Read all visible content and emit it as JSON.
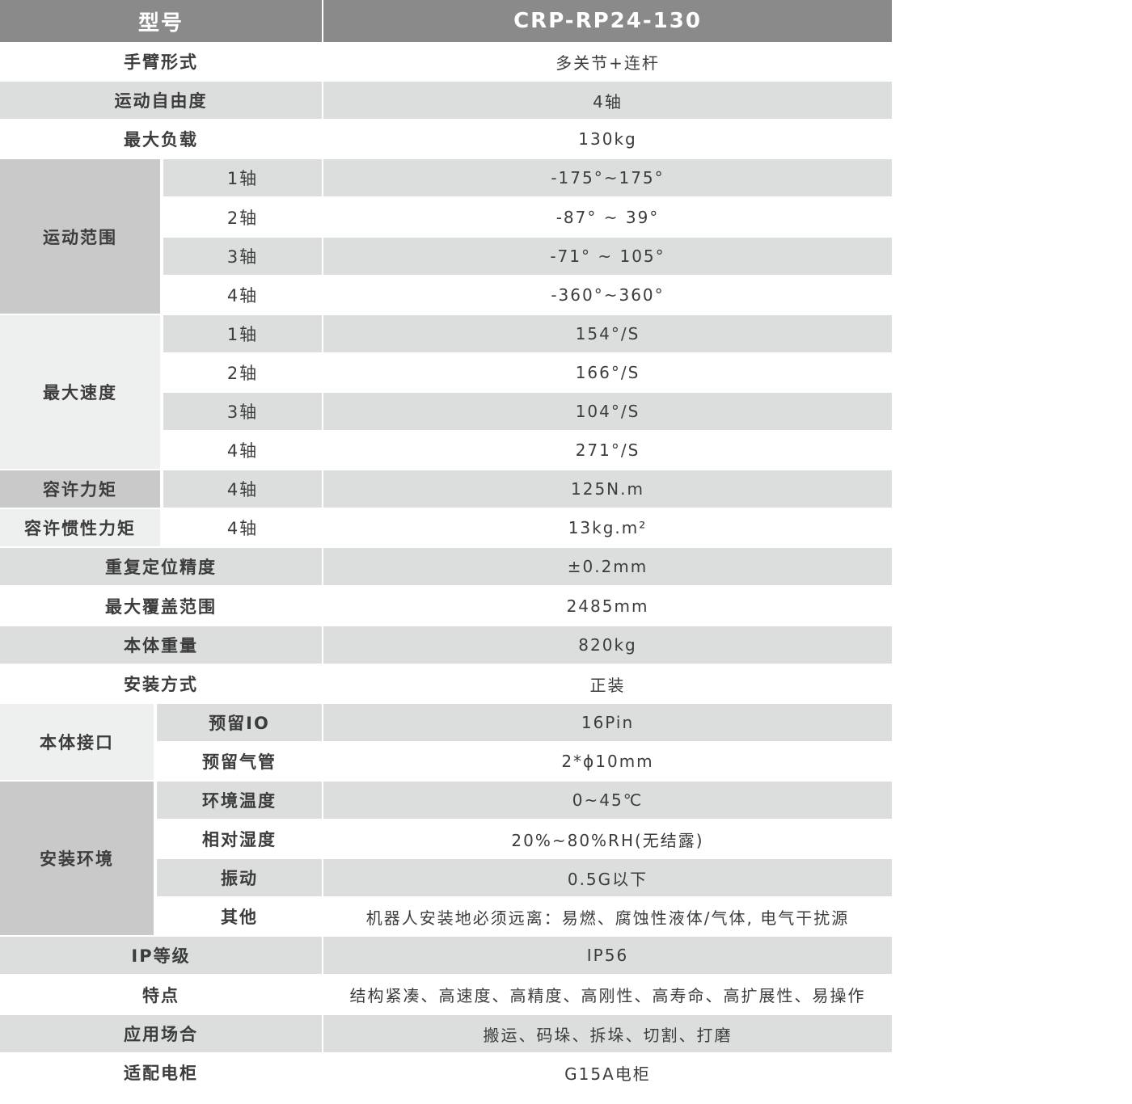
{
  "header": {
    "label": "型号",
    "value": "CRP-RP24-130"
  },
  "colors": {
    "header": "#8a8a8a",
    "stripe": "#dcdddd",
    "group_dark": "#c9c9c9",
    "group_light": "#eeefef",
    "text": "#3c3c3c"
  },
  "rows": [
    {
      "label": "手臂形式",
      "value": "多关节+连杆"
    },
    {
      "label": "运动自由度",
      "value": "4轴"
    },
    {
      "label": "最大负载",
      "value": "130kg"
    },
    {
      "sub": "1轴",
      "value": "-175°~175°"
    },
    {
      "sub": "2轴",
      "value": "-87° ~ 39°"
    },
    {
      "sub": "3轴",
      "value": "-71° ~ 105°"
    },
    {
      "sub": "4轴",
      "value": "-360°~360°"
    },
    {
      "sub": "1轴",
      "value": "154°/S"
    },
    {
      "sub": "2轴",
      "value": "166°/S"
    },
    {
      "sub": "3轴",
      "value": "104°/S"
    },
    {
      "sub": "4轴",
      "value": "271°/S"
    },
    {
      "sub": "4轴",
      "value": "125N.m"
    },
    {
      "sub": "4轴",
      "value": "13kg.m²"
    },
    {
      "label": "重复定位精度",
      "value": "±0.2mm"
    },
    {
      "label": "最大覆盖范围",
      "value": "2485mm"
    },
    {
      "label": "本体重量",
      "value": "820kg"
    },
    {
      "label": "安装方式",
      "value": "正装"
    },
    {
      "sub": "预留IO",
      "value": "16Pin"
    },
    {
      "sub": "预留气管",
      "value": "2*ϕ10mm"
    },
    {
      "sub": "环境温度",
      "value": "0~45℃"
    },
    {
      "sub": "相对湿度",
      "value": "20%~80%RH(无结露)"
    },
    {
      "sub": "振动",
      "value": "0.5G以下"
    },
    {
      "sub": "其他",
      "value": "机器人安装地必须远离：易燃、腐蚀性液体/气体, 电气干扰源"
    },
    {
      "label": "IP等级",
      "value": "IP56"
    },
    {
      "label": "特点",
      "value": "结构紧凑、高速度、高精度、高刚性、高寿命、高扩展性、易操作"
    },
    {
      "label": "应用场合",
      "value": "搬运、码垛、拆垛、切割、打磨"
    },
    {
      "label": "适配电柜",
      "value": "G15A电柜"
    }
  ],
  "groups": [
    {
      "label": "运动范围",
      "first_row": 3,
      "row_count": 4,
      "shade": "dark"
    },
    {
      "label": "最大速度",
      "first_row": 7,
      "row_count": 4,
      "shade": "light"
    },
    {
      "label": "容许力矩",
      "first_row": 11,
      "row_count": 1,
      "shade": "dark"
    },
    {
      "label": "容许惯性力矩",
      "first_row": 12,
      "row_count": 1,
      "shade": "light"
    },
    {
      "label": "本体接口",
      "first_row": 17,
      "row_count": 2,
      "shade": "light"
    },
    {
      "label": "安装环境",
      "first_row": 19,
      "row_count": 4,
      "shade": "dark"
    }
  ]
}
